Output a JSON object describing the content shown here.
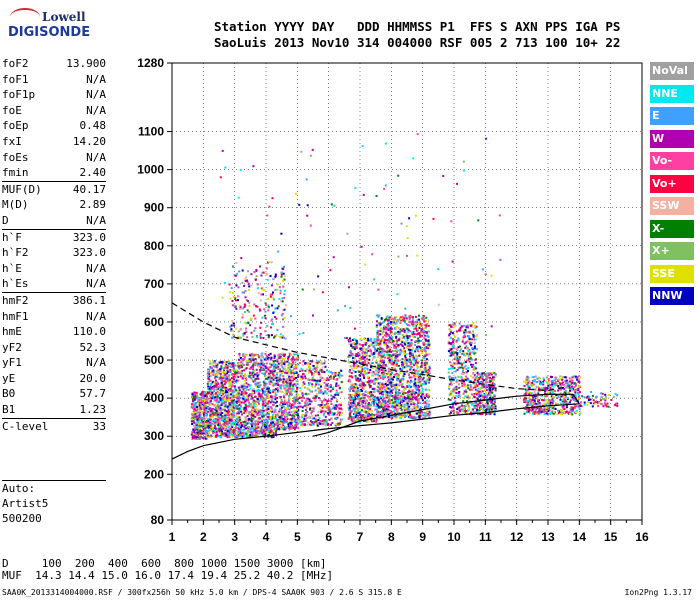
{
  "logo": {
    "line1": "Lowell",
    "line2": "DIGISONDE"
  },
  "header": {
    "row1": "Station YYYY DAY   DDD HHMMSS P1  FFS S AXN PPS IGA PS",
    "row2": "SaoLuis 2013 Nov10 314 004000 RSF 005 2 713 100 10+ 22"
  },
  "params": [
    {
      "key": "foF2",
      "value": "13.900"
    },
    {
      "key": "foF1",
      "value": "N/A"
    },
    {
      "key": "foF1p",
      "value": "N/A"
    },
    {
      "key": "foE",
      "value": "N/A"
    },
    {
      "key": "foEp",
      "value": "0.48"
    },
    {
      "key": "fxI",
      "value": "14.20"
    },
    {
      "key": "foEs",
      "value": "N/A"
    },
    {
      "key": "fmin",
      "value": "2.40"
    },
    {
      "key": "MUF(D)",
      "value": "40.17",
      "sep": true
    },
    {
      "key": "M(D)",
      "value": "2.89"
    },
    {
      "key": "D",
      "value": "N/A"
    },
    {
      "key": "h`F",
      "value": "323.0",
      "sep": true
    },
    {
      "key": "h`F2",
      "value": "323.0"
    },
    {
      "key": "h`E",
      "value": "N/A"
    },
    {
      "key": "h`Es",
      "value": "N/A"
    },
    {
      "key": "hmF2",
      "value": "386.1",
      "sep": true
    },
    {
      "key": "hmF1",
      "value": "N/A"
    },
    {
      "key": "hmE",
      "value": "110.0"
    },
    {
      "key": "yF2",
      "value": "52.3"
    },
    {
      "key": "yF1",
      "value": "N/A"
    },
    {
      "key": "yE",
      "value": "20.0"
    },
    {
      "key": "B0",
      "value": "57.7"
    },
    {
      "key": "B1",
      "value": "1.23"
    },
    {
      "key": "C-level",
      "value": "33",
      "sep": true
    }
  ],
  "auto": {
    "label": "Auto:",
    "artist": "Artist5",
    "code": "500200"
  },
  "bottom": {
    "row1": "D     100  200  400  600  800 1000 1500 3000 [km]",
    "row2": "MUF  14.3 14.4 15.0 16.0 17.4 19.4 25.2 40.2 [MHz]"
  },
  "footer": {
    "left": "SAA0K_2013314004000.RSF / 300fx256h 50 kHz 5.0 km / DPS-4 SAA0K 903 / 2.6 S 315.8 E",
    "right": "Ion2Png 1.3.17"
  },
  "chart_data": {
    "type": "scatter",
    "x_ticks": [
      1,
      2,
      3,
      4,
      5,
      6,
      7,
      8,
      9,
      10,
      11,
      12,
      13,
      14,
      15,
      16
    ],
    "y_ticks": [
      80,
      200,
      300,
      400,
      500,
      600,
      700,
      800,
      900,
      1000,
      1100,
      1280
    ],
    "xlim": [
      1,
      16
    ],
    "ylim": [
      80,
      1280
    ],
    "legend": [
      {
        "name": "NoVal",
        "color": "#a0a0a0"
      },
      {
        "name": "NNE",
        "color": "#00e8f0"
      },
      {
        "name": "E",
        "color": "#40a0ff"
      },
      {
        "name": "W",
        "color": "#b000b0"
      },
      {
        "name": "Vo-",
        "color": "#ff40a0"
      },
      {
        "name": "Vo+",
        "color": "#ff0040"
      },
      {
        "name": "SSW",
        "color": "#f4b0a0"
      },
      {
        "name": "X-",
        "color": "#008000"
      },
      {
        "name": "X+",
        "color": "#80c060"
      },
      {
        "name": "SSE",
        "color": "#e0e000"
      },
      {
        "name": "NNW",
        "color": "#0000c0"
      }
    ],
    "clusters": [
      {
        "x0": 1.6,
        "x1": 2.1,
        "y0": 295,
        "y1": 420,
        "n": 420
      },
      {
        "x0": 2.1,
        "x1": 3.1,
        "y0": 300,
        "y1": 500,
        "n": 900
      },
      {
        "x0": 3.1,
        "x1": 4.3,
        "y0": 300,
        "y1": 520,
        "n": 900
      },
      {
        "x0": 2.8,
        "x1": 4.6,
        "y0": 560,
        "y1": 760,
        "n": 220
      },
      {
        "x0": 4.3,
        "x1": 5.0,
        "y0": 320,
        "y1": 520,
        "n": 500
      },
      {
        "x0": 5.0,
        "x1": 5.9,
        "y0": 330,
        "y1": 500,
        "n": 300
      },
      {
        "x0": 5.9,
        "x1": 6.4,
        "y0": 330,
        "y1": 480,
        "n": 160
      },
      {
        "x0": 6.6,
        "x1": 7.5,
        "y0": 340,
        "y1": 560,
        "n": 600
      },
      {
        "x0": 7.5,
        "x1": 8.2,
        "y0": 350,
        "y1": 620,
        "n": 700
      },
      {
        "x0": 8.2,
        "x1": 9.2,
        "y0": 350,
        "y1": 620,
        "n": 800
      },
      {
        "x0": 9.8,
        "x1": 10.7,
        "y0": 360,
        "y1": 600,
        "n": 450
      },
      {
        "x0": 10.7,
        "x1": 11.3,
        "y0": 360,
        "y1": 470,
        "n": 300
      },
      {
        "x0": 12.2,
        "x1": 14.0,
        "y0": 360,
        "y1": 460,
        "n": 600
      },
      {
        "x0": 14.0,
        "x1": 15.2,
        "y0": 380,
        "y1": 420,
        "n": 60
      }
    ],
    "curves": {
      "solid_lower": [
        [
          1,
          240
        ],
        [
          1.5,
          260
        ],
        [
          2,
          275
        ],
        [
          3,
          292
        ],
        [
          4,
          300
        ],
        [
          5,
          310
        ],
        [
          6,
          320
        ],
        [
          7,
          328
        ],
        [
          8,
          335
        ],
        [
          9,
          345
        ],
        [
          10,
          355
        ],
        [
          11,
          362
        ],
        [
          12,
          372
        ],
        [
          13,
          380
        ],
        [
          14,
          385
        ]
      ],
      "solid_upper": [
        [
          5.5,
          300
        ],
        [
          6,
          310
        ],
        [
          7,
          340
        ],
        [
          8,
          355
        ],
        [
          9,
          370
        ],
        [
          10,
          385
        ],
        [
          11,
          395
        ],
        [
          12,
          405
        ],
        [
          13,
          410
        ],
        [
          13.8,
          410
        ],
        [
          14,
          385
        ]
      ],
      "dashed": [
        [
          1,
          650
        ],
        [
          2,
          600
        ],
        [
          3,
          560
        ],
        [
          4,
          540
        ],
        [
          5,
          520
        ],
        [
          6,
          505
        ],
        [
          7,
          490
        ],
        [
          8,
          475
        ],
        [
          9,
          462
        ],
        [
          10,
          448
        ],
        [
          11,
          436
        ],
        [
          12,
          425
        ],
        [
          13,
          420
        ],
        [
          13.6,
          430
        ]
      ]
    }
  }
}
